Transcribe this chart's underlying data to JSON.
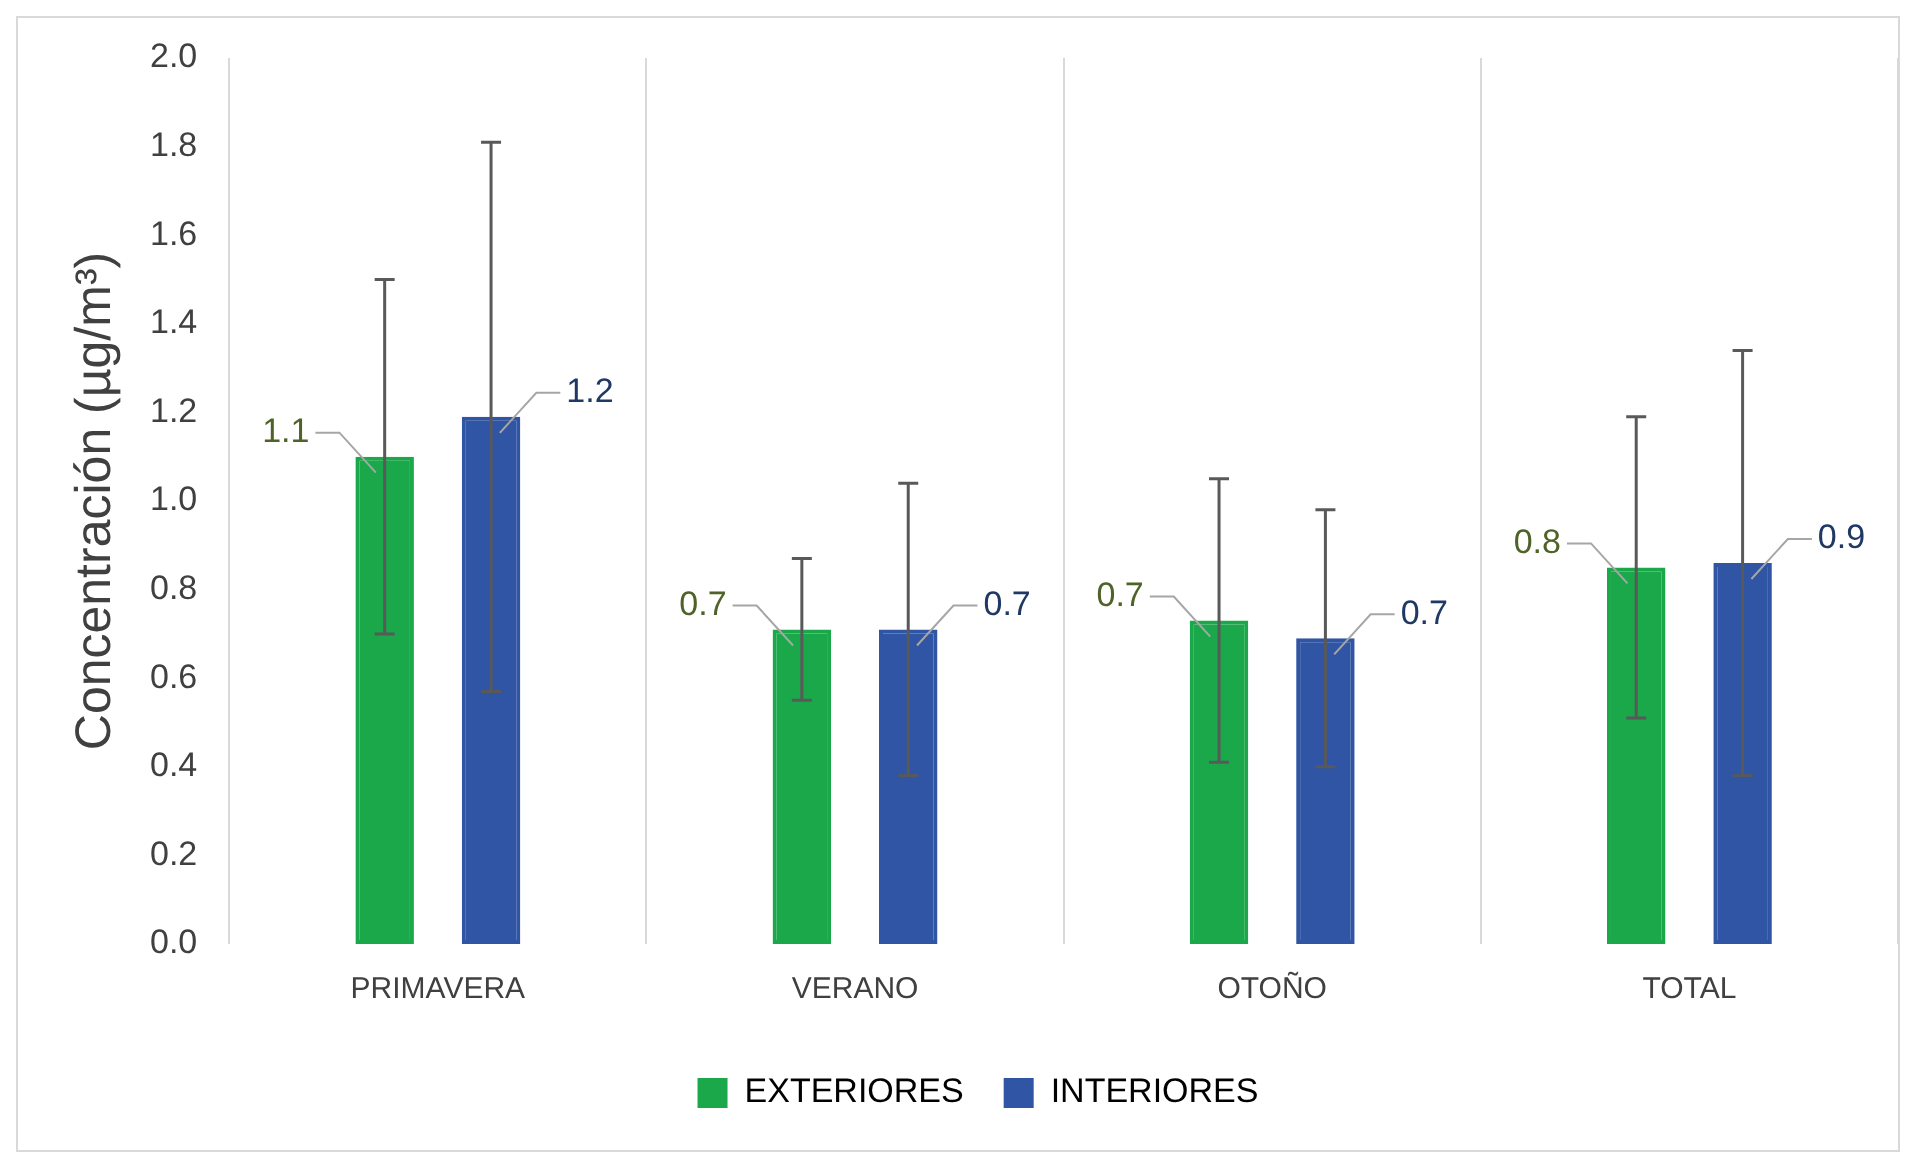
{
  "chart_data": {
    "type": "bar",
    "ylabel": "Concentración (µg/m³)",
    "categories": [
      "PRIMAVERA",
      "VERANO",
      "OTOÑO",
      "TOTAL"
    ],
    "series": [
      {
        "name": "EXTERIORES",
        "color": "#1aa84a",
        "values": [
          1.1,
          0.71,
          0.73,
          0.85
        ],
        "errors": [
          0.4,
          0.16,
          0.32,
          0.34
        ],
        "value_labels": [
          "1.1",
          "0.7",
          "0.7",
          "0.8"
        ]
      },
      {
        "name": "INTERIORES",
        "color": "#2f55a4",
        "values": [
          1.19,
          0.71,
          0.69,
          0.86
        ],
        "errors": [
          0.62,
          0.33,
          0.29,
          0.48
        ],
        "value_labels": [
          "1.2",
          "0.7",
          "0.7",
          "0.9"
        ]
      }
    ],
    "ylim": [
      0,
      2
    ],
    "yticks": [
      {
        "value": 0,
        "label": "0.0"
      },
      {
        "value": 0.2,
        "label": "0.2"
      },
      {
        "value": 0.4,
        "label": "0.4"
      },
      {
        "value": 0.6,
        "label": "0.6"
      },
      {
        "value": 0.8,
        "label": "0.8"
      },
      {
        "value": 1,
        "label": "1.0"
      },
      {
        "value": 1.2,
        "label": "1.2"
      },
      {
        "value": 1.4,
        "label": "1.4"
      },
      {
        "value": 1.6,
        "label": "1.6"
      },
      {
        "value": 1.8,
        "label": "1.8"
      },
      {
        "value": 2,
        "label": "2.0"
      }
    ],
    "grid": "x",
    "legend": "bottom"
  }
}
